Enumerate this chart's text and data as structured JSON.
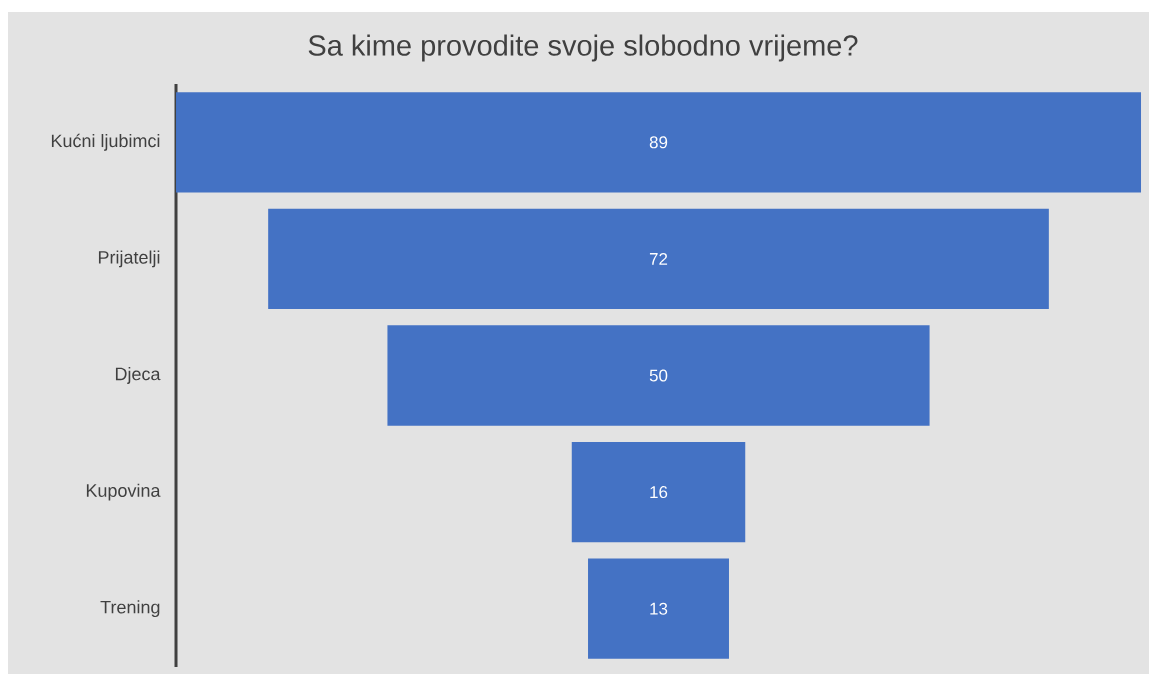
{
  "chart_data": {
    "type": "other",
    "title": "Sa kime provodite svoje slobodno vrijeme?",
    "categories": [
      "Kućni ljubimci",
      "Prijatelji",
      "Djeca",
      "Kupovina",
      "Trening"
    ],
    "values": [
      89,
      72,
      50,
      16,
      13
    ],
    "color": "#4472c4",
    "data_labels": true
  }
}
